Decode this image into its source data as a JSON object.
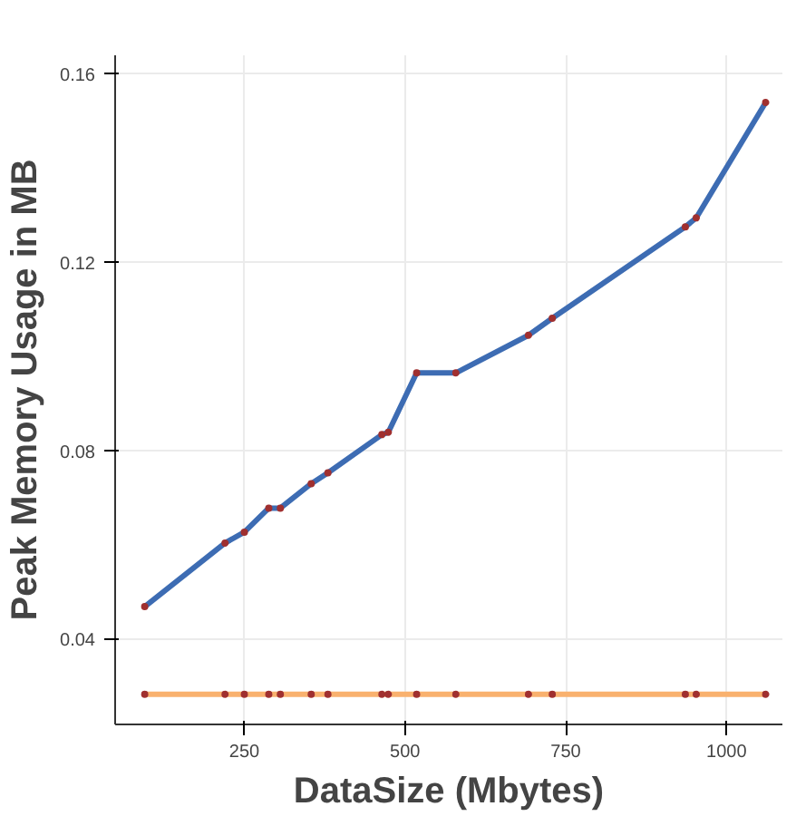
{
  "chart_data": {
    "type": "line",
    "xlabel": "DataSize (Mbytes)",
    "ylabel": "Peak Memory Usage in MB",
    "x": [
      95,
      220,
      250,
      288,
      306,
      354,
      380,
      464,
      474,
      518,
      579,
      692,
      729,
      936,
      953,
      1061
    ],
    "series": [
      {
        "color": "#3d6cb3",
        "values": [
          0.047,
          0.0605,
          0.0628,
          0.0679,
          0.0679,
          0.0731,
          0.0754,
          0.0835,
          0.084,
          0.0966,
          0.0966,
          0.1046,
          0.1082,
          0.1276,
          0.1295,
          0.154
        ]
      },
      {
        "color": "#f9b16e",
        "values": [
          0.0284,
          0.0284,
          0.0284,
          0.0284,
          0.0284,
          0.0284,
          0.0284,
          0.0284,
          0.0284,
          0.0284,
          0.0284,
          0.0284,
          0.0284,
          0.0284,
          0.0284,
          0.0284
        ]
      }
    ],
    "xlim": [
      49,
      1087
    ],
    "ylim": [
      0.022,
      0.164
    ],
    "xticks": [
      250,
      500,
      750,
      1000
    ],
    "yticks": [
      0.04,
      0.08,
      0.12,
      0.16
    ],
    "grid": true,
    "marker": "circle",
    "line_style": "solid"
  }
}
